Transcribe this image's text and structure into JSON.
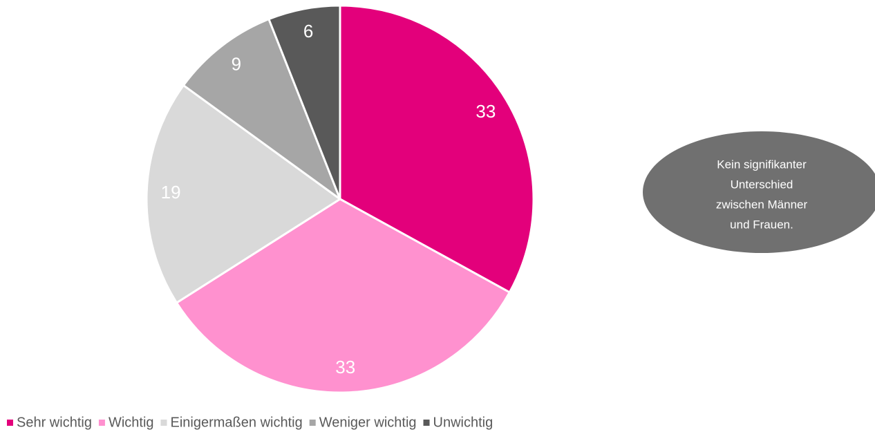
{
  "chart_data": {
    "type": "pie",
    "categories": [
      "Sehr wichtig",
      "Wichtig",
      "Einigermaßen wichtig",
      "Weniger wichtig",
      "Unwichtig"
    ],
    "values": [
      33,
      33,
      19,
      9,
      6
    ],
    "colors": [
      "#e3007b",
      "#ff91cf",
      "#d9d9d9",
      "#a6a6a6",
      "#595959"
    ],
    "annotation": [
      "Kein signifikanter",
      "Unterschied",
      "zwischen Männer",
      "und Frauen."
    ],
    "legend": "bottom"
  }
}
